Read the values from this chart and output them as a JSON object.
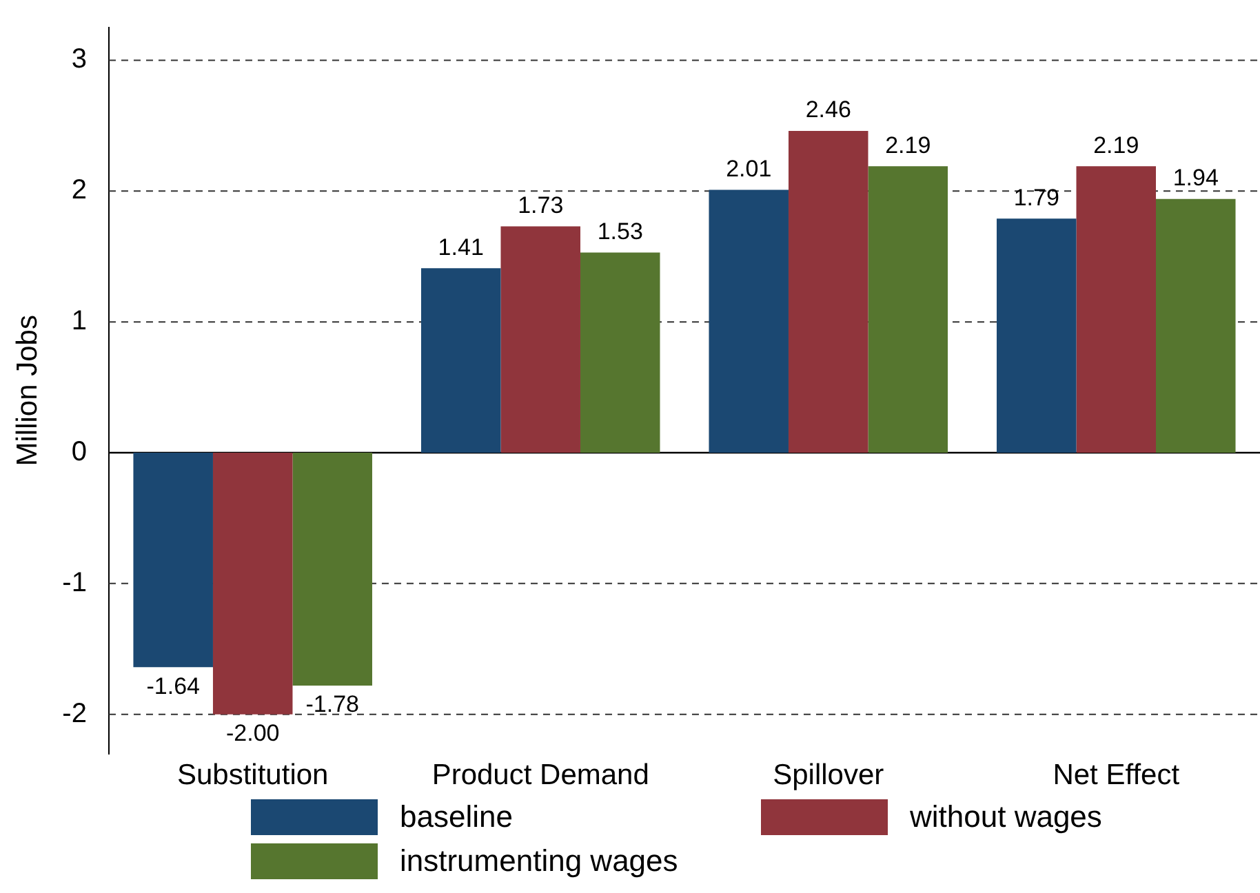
{
  "chart_data": {
    "type": "bar",
    "ylabel": "Million Jobs",
    "categories": [
      "Substitution",
      "Product Demand",
      "Spillover",
      "Net Effect"
    ],
    "series": [
      {
        "name": "baseline",
        "color": "#1b4872",
        "values": [
          -1.64,
          1.41,
          2.01,
          1.79
        ],
        "value_labels": [
          "-1.64",
          "1.41",
          "2.01",
          "1.79"
        ]
      },
      {
        "name": "without wages",
        "color": "#90353c",
        "values": [
          -2.0,
          1.73,
          2.46,
          2.19
        ],
        "value_labels": [
          "-2.00",
          "1.73",
          "2.46",
          "2.19"
        ]
      },
      {
        "name": "instrumenting wages",
        "color": "#56762f",
        "values": [
          -1.78,
          1.53,
          2.19,
          1.94
        ],
        "value_labels": [
          "-1.78",
          "1.53",
          "2.19",
          "1.94"
        ]
      }
    ],
    "ylim": [
      -2.3,
      3.25
    ],
    "yticks": [
      -2,
      -1,
      0,
      1,
      2,
      3
    ],
    "grid": "y",
    "legend": "bottom",
    "ref_lines": [
      {
        "axis": "y",
        "value": 0
      }
    ]
  }
}
